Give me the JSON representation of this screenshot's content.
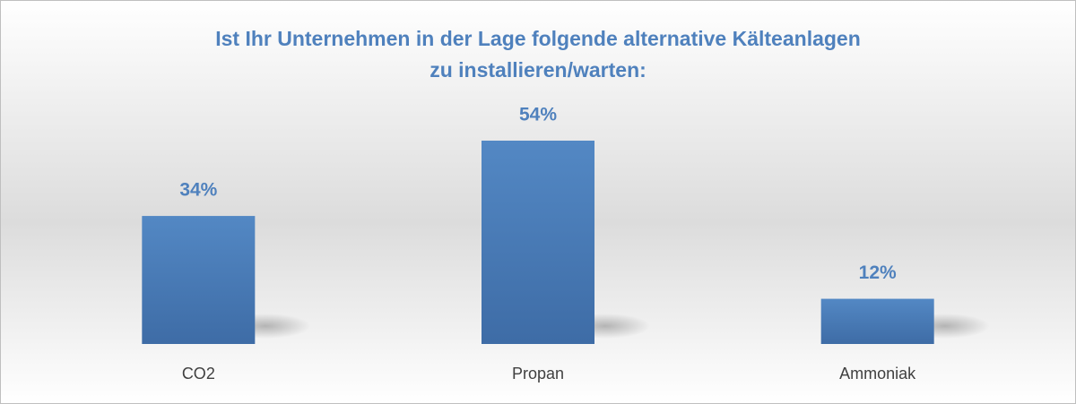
{
  "chart_data": {
    "type": "bar",
    "title": [
      "Ist Ihr Unternehmen in der Lage folgende alternative Kälteanlagen",
      "zu installieren/warten:"
    ],
    "categories": [
      "CO2",
      "Propan",
      "Ammoniak"
    ],
    "values": [
      34,
      54,
      12
    ],
    "value_labels": [
      "34%",
      "54%",
      "12%"
    ],
    "color": "#4f81bd"
  }
}
